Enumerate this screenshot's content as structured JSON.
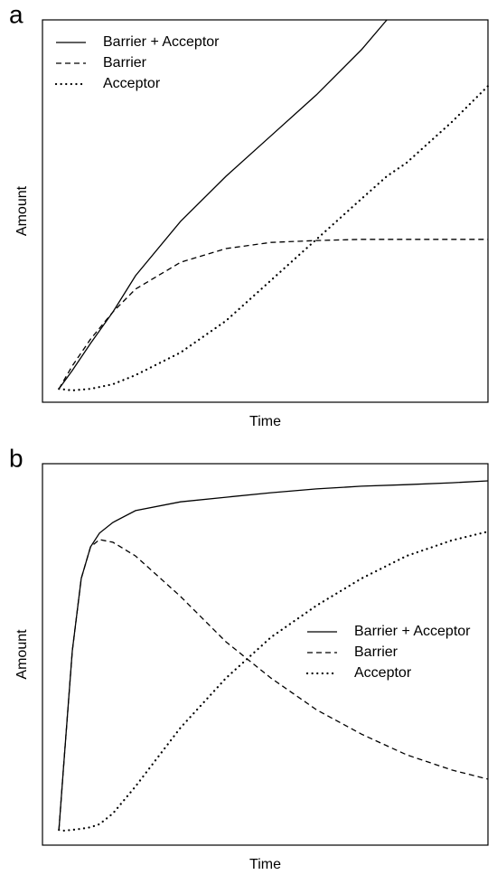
{
  "chart_data": [
    {
      "type": "line",
      "panel_label": "a",
      "x_label": "Time",
      "y_label": "Amount",
      "xlim": [
        0,
        100
      ],
      "ylim": [
        0,
        100
      ],
      "legend": "upper left",
      "x": [
        3.7,
        6.7,
        10.8,
        15.8,
        20.9,
        31,
        41.2,
        51.3,
        61.5,
        71.6,
        77.3,
        81.7,
        91.9,
        100
      ],
      "series": [
        {
          "name": "Barrier + Acceptor",
          "color": "#000000",
          "style": "solid",
          "values": [
            3.5,
            8.3,
            15.4,
            23.6,
            33.1,
            47.3,
            59.1,
            69.7,
            80.4,
            92.2,
            100,
            null,
            null,
            null
          ]
        },
        {
          "name": "Barrier",
          "color": "#000000",
          "style": "dashed",
          "values": [
            3.5,
            9.5,
            16.5,
            23.6,
            29.6,
            36.6,
            40.2,
            41.8,
            42.3,
            42.6,
            42.6,
            42.6,
            42.6,
            42.6
          ]
        },
        {
          "name": "Acceptor",
          "color": "#000000",
          "style": "dotted",
          "values": [
            3.5,
            3.1,
            3.5,
            4.7,
            7.1,
            13,
            21.3,
            31.9,
            42.6,
            53.2,
            59.1,
            62.6,
            73.3,
            82.7
          ]
        }
      ]
    },
    {
      "type": "line",
      "panel_label": "b",
      "x_label": "Time",
      "y_label": "Amount",
      "xlim": [
        0,
        100
      ],
      "ylim": [
        0,
        100
      ],
      "legend": "center right",
      "x": [
        3.7,
        4.7,
        6.7,
        8.7,
        10.8,
        12.8,
        15.8,
        20.9,
        31,
        41.2,
        51.3,
        61.5,
        71.6,
        81.7,
        91.9,
        100
      ],
      "series": [
        {
          "name": "Barrier + Acceptor",
          "color": "#000000",
          "style": "solid",
          "values": [
            4.0,
            20.1,
            50.9,
            69.9,
            78.2,
            81.8,
            84.6,
            87.7,
            90.0,
            91.2,
            92.4,
            93.4,
            94.1,
            94.5,
            95.0,
            95.5
          ]
        },
        {
          "name": "Barrier",
          "color": "#000000",
          "style": "dashed",
          "values": [
            4.0,
            20.1,
            50.9,
            69.9,
            78.2,
            80.1,
            79.4,
            75.8,
            65.2,
            53.3,
            43.8,
            35.5,
            29.1,
            23.7,
            19.7,
            17.3
          ]
        },
        {
          "name": "Acceptor",
          "color": "#000000",
          "style": "dotted",
          "values": [
            4.0,
            3.8,
            4.0,
            4.3,
            4.7,
            5.5,
            8.3,
            15.4,
            30.8,
            43.8,
            54.5,
            62.8,
            69.9,
            75.8,
            79.9,
            82.2
          ]
        }
      ]
    }
  ]
}
